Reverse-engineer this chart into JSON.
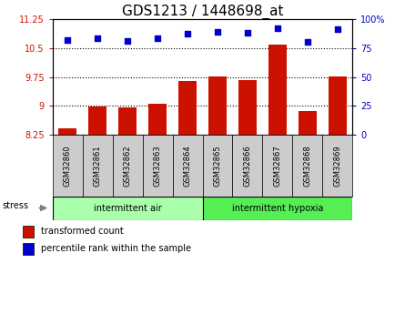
{
  "title": "GDS1213 / 1448698_at",
  "samples": [
    "GSM32860",
    "GSM32861",
    "GSM32862",
    "GSM32863",
    "GSM32864",
    "GSM32865",
    "GSM32866",
    "GSM32867",
    "GSM32868",
    "GSM32869"
  ],
  "bar_values": [
    8.42,
    8.98,
    8.96,
    9.06,
    9.65,
    9.76,
    9.68,
    10.58,
    8.88,
    9.76
  ],
  "dot_values": [
    82,
    83,
    81,
    83,
    87,
    89,
    88,
    92,
    80,
    91
  ],
  "ylim_left": [
    8.25,
    11.25
  ],
  "ylim_right": [
    0,
    100
  ],
  "yticks_left": [
    8.25,
    9.0,
    9.75,
    10.5,
    11.25
  ],
  "ytick_labels_left": [
    "8.25",
    "9",
    "9.75",
    "10.5",
    "11.25"
  ],
  "yticks_right": [
    0,
    25,
    50,
    75,
    100
  ],
  "ytick_labels_right": [
    "0",
    "25",
    "50",
    "75",
    "100%"
  ],
  "hlines": [
    10.5,
    9.75,
    9.0
  ],
  "bar_color": "#cc1100",
  "dot_color": "#0000cc",
  "bar_bottom": 8.25,
  "group1_label": "intermittent air",
  "group2_label": "intermittent hypoxia",
  "group1_count": 5,
  "group2_count": 5,
  "stress_label": "stress",
  "legend1_label": "transformed count",
  "legend2_label": "percentile rank within the sample",
  "bg_color": "#cccccc",
  "group_bar_color1": "#aaffaa",
  "group_bar_color2": "#55ee55",
  "title_fontsize": 11,
  "tick_fontsize": 7,
  "label_fontsize": 8
}
